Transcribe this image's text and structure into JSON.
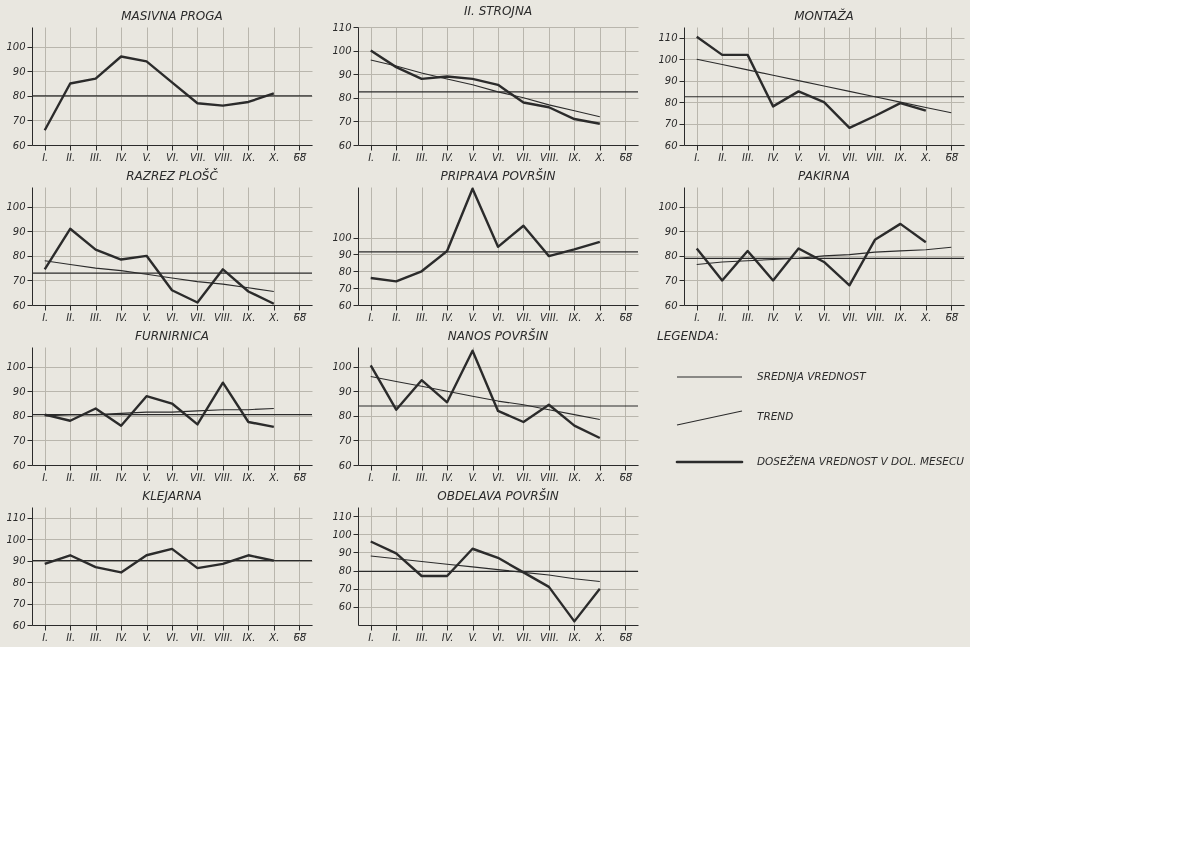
{
  "chart_data": [
    {
      "type": "line",
      "title": "MASIVNA PROGA",
      "categories": [
        "I.",
        "II.",
        "III.",
        "IV.",
        "V.",
        "VI.",
        "VII.",
        "VIII.",
        "IX.",
        "X.",
        "6̅8̅"
      ],
      "ylim": [
        60,
        108
      ],
      "yticks": [
        60,
        70,
        80,
        90,
        100
      ],
      "grid": true,
      "series": [
        {
          "color": "#2b2b2b",
          "values": [
            66,
            85,
            87,
            96,
            94,
            85.5,
            77,
            76,
            77.5,
            81,
            null
          ]
        }
      ],
      "ref_lines": [
        {
          "axis": "y",
          "value": 80
        }
      ]
    },
    {
      "type": "line",
      "title": "II. STROJNA",
      "categories": [
        "I.",
        "II.",
        "III.",
        "IV.",
        "V.",
        "VI.",
        "VII.",
        "VIII.",
        "IX.",
        "X.",
        "6̅8̅"
      ],
      "ylim": [
        60,
        110
      ],
      "yticks": [
        60,
        70,
        80,
        90,
        100,
        110
      ],
      "grid": true,
      "series": [
        {
          "color": "#2b2b2b",
          "values": [
            100,
            93,
            88,
            89,
            88,
            85.5,
            78,
            76,
            71,
            69,
            null
          ]
        },
        {
          "type": "line",
          "color": "#2b2b2b",
          "values": [
            96,
            93.5,
            90.5,
            88,
            85.5,
            82.5,
            80,
            77,
            74.5,
            72,
            null
          ]
        }
      ],
      "ref_lines": [
        {
          "axis": "y",
          "value": 82.5
        }
      ]
    },
    {
      "type": "line",
      "title": "MONTAŽA",
      "categories": [
        "I.",
        "II.",
        "III.",
        "IV.",
        "V.",
        "VI.",
        "VII.",
        "VIII.",
        "IX.",
        "X.",
        "6̅8̅"
      ],
      "ylim": [
        60,
        115
      ],
      "yticks": [
        60,
        70,
        80,
        90,
        100,
        110
      ],
      "grid": true,
      "series": [
        {
          "color": "#2b2b2b",
          "values": [
            110.5,
            102,
            102,
            78,
            85,
            80,
            68,
            73.5,
            79.5,
            76,
            null
          ]
        },
        {
          "type": "line",
          "color": "#2b2b2b",
          "values": [
            100,
            97.5,
            95,
            92.5,
            90,
            87.5,
            85,
            82.5,
            80,
            77.5,
            75
          ]
        }
      ],
      "ref_lines": [
        {
          "axis": "y",
          "value": 82.5
        }
      ]
    },
    {
      "type": "line",
      "title": "RAZREZ PLOŠČ",
      "categories": [
        "I.",
        "II.",
        "III.",
        "IV.",
        "V.",
        "VI.",
        "VII.",
        "VIII.",
        "IX.",
        "X.",
        "6̅8̅"
      ],
      "ylim": [
        60,
        108
      ],
      "yticks": [
        60,
        70,
        80,
        90,
        100
      ],
      "grid": true,
      "series": [
        {
          "color": "#2b2b2b",
          "values": [
            74.5,
            91,
            82.5,
            78.5,
            80,
            66,
            61,
            74.5,
            65.5,
            60.5,
            null
          ]
        },
        {
          "type": "line",
          "color": "#2b2b2b",
          "values": [
            78,
            76.5,
            75,
            74,
            72.5,
            71,
            69.5,
            68.5,
            67,
            65.5,
            null
          ]
        }
      ],
      "ref_lines": [
        {
          "axis": "y",
          "value": 73
        }
      ]
    },
    {
      "type": "line",
      "title": "PRIPRAVA POVRŠIN",
      "categories": [
        "I.",
        "II.",
        "III.",
        "IV.",
        "V.",
        "VI.",
        "VII.",
        "VIII.",
        "IX.",
        "X.",
        "6̅8̅"
      ],
      "ylim": [
        60,
        130
      ],
      "yticks": [
        60,
        70,
        80,
        90,
        100
      ],
      "grid": true,
      "series": [
        {
          "color": "#2b2b2b",
          "values": [
            76,
            74,
            80,
            92,
            129,
            94.5,
            107,
            89,
            93,
            97.5,
            null
          ]
        }
      ],
      "ref_lines": [
        {
          "axis": "y",
          "value": 91.5
        }
      ]
    },
    {
      "type": "line",
      "title": "PAKIRNA",
      "categories": [
        "I.",
        "II.",
        "III.",
        "IV.",
        "V.",
        "VI.",
        "VII.",
        "VIII.",
        "IX.",
        "X.",
        "6̅8̅"
      ],
      "ylim": [
        60,
        108
      ],
      "yticks": [
        60,
        70,
        80,
        90,
        100
      ],
      "grid": true,
      "series": [
        {
          "color": "#2b2b2b",
          "values": [
            83,
            70,
            82,
            70,
            83,
            77.5,
            68,
            86.5,
            93,
            85.5,
            null
          ]
        },
        {
          "type": "line",
          "color": "#2b2b2b",
          "values": [
            76.5,
            77.5,
            78,
            78.5,
            79,
            80,
            80.5,
            81.5,
            82,
            82.5,
            83.5
          ]
        }
      ],
      "ref_lines": [
        {
          "axis": "y",
          "value": 79
        }
      ]
    },
    {
      "type": "line",
      "title": "FURNIRNICA",
      "categories": [
        "I.",
        "II.",
        "III.",
        "IV.",
        "V.",
        "VI.",
        "VII.",
        "VIII.",
        "IX.",
        "X.",
        "6̅8̅"
      ],
      "ylim": [
        60,
        108
      ],
      "yticks": [
        60,
        70,
        80,
        90,
        100
      ],
      "grid": true,
      "series": [
        {
          "color": "#2b2b2b",
          "values": [
            80.5,
            78,
            83,
            76,
            88,
            85,
            76.5,
            93.5,
            77.5,
            75.5,
            null
          ]
        },
        {
          "type": "line",
          "color": "#2b2b2b",
          "values": [
            80,
            80.5,
            80.5,
            81,
            81.5,
            81.5,
            82,
            82.5,
            82.5,
            83,
            null
          ]
        }
      ],
      "ref_lines": [
        {
          "axis": "y",
          "value": 80.5
        }
      ]
    },
    {
      "type": "line",
      "title": "NANOS POVRŠIN",
      "categories": [
        "I.",
        "II.",
        "III.",
        "IV.",
        "V.",
        "VI.",
        "VII.",
        "VIII.",
        "IX.",
        "X.",
        "6̅8̅"
      ],
      "ylim": [
        60,
        108
      ],
      "yticks": [
        60,
        70,
        80,
        90,
        100
      ],
      "grid": true,
      "series": [
        {
          "color": "#2b2b2b",
          "values": [
            100.5,
            82.5,
            94.5,
            85.5,
            106.5,
            82,
            77.5,
            84.5,
            76,
            71,
            null
          ]
        },
        {
          "type": "line",
          "color": "#2b2b2b",
          "values": [
            96,
            94,
            92,
            90,
            88,
            86,
            84.5,
            82.5,
            80.5,
            78.5,
            null
          ]
        }
      ],
      "ref_lines": [
        {
          "axis": "y",
          "value": 84
        }
      ]
    },
    {
      "type": "other",
      "title": "LEGENDA:",
      "annotations": [
        "SREDNJA VREDNOST",
        "TREND",
        "DOSEŽENA VREDNOST V DOL. MESECU"
      ]
    },
    {
      "type": "line",
      "title": "KLEJARNA",
      "categories": [
        "I.",
        "II.",
        "III.",
        "IV.",
        "V.",
        "VI.",
        "VII.",
        "VIII.",
        "IX.",
        "X.",
        "6̅8̅"
      ],
      "ylim": [
        60,
        115
      ],
      "yticks": [
        60,
        70,
        80,
        90,
        100,
        110
      ],
      "grid": true,
      "series": [
        {
          "color": "#2b2b2b",
          "values": [
            88.5,
            92.5,
            87,
            84.5,
            92.5,
            95.5,
            86.5,
            88.5,
            92.5,
            90,
            null
          ]
        }
      ],
      "ref_lines": [
        {
          "axis": "y",
          "value": 90
        }
      ]
    },
    {
      "type": "line",
      "title": "OBDELAVA POVRŠIN",
      "categories": [
        "I.",
        "II.",
        "III.",
        "IV.",
        "V.",
        "VI.",
        "VII.",
        "VIII.",
        "IX.",
        "X.",
        "6̅8̅"
      ],
      "ylim": [
        50,
        115
      ],
      "yticks": [
        60,
        70,
        80,
        90,
        100,
        110
      ],
      "grid": true,
      "series": [
        {
          "color": "#2b2b2b",
          "values": [
            96,
            89.5,
            77,
            77,
            92,
            87,
            79,
            71,
            52,
            70,
            null
          ]
        },
        {
          "type": "line",
          "color": "#2b2b2b",
          "values": [
            88,
            86.5,
            85,
            83.5,
            82,
            80.5,
            79,
            77.5,
            75.5,
            74,
            null
          ]
        }
      ],
      "ref_lines": [
        {
          "axis": "y",
          "value": 79.5
        }
      ]
    }
  ]
}
